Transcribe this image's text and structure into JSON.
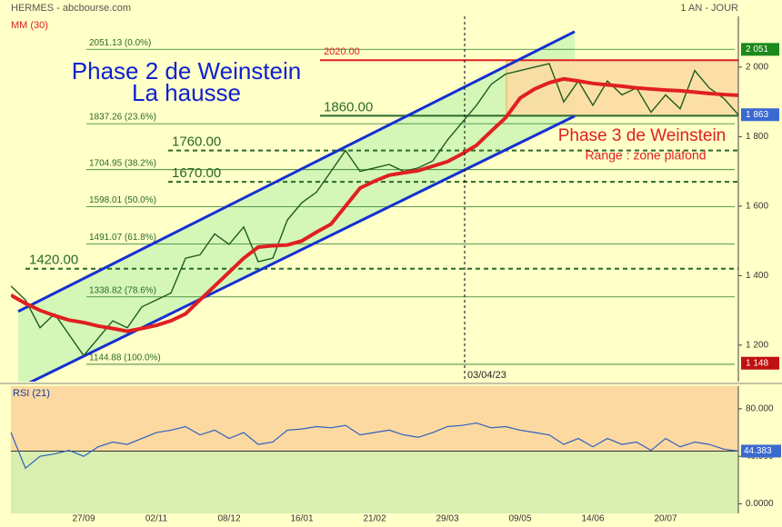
{
  "chart_data": [
    {
      "type": "line",
      "title": "HERMES - abcbourse.com",
      "subtitle": "1 AN - JOUR",
      "series": [
        {
          "color": "#1d5c1d",
          "values": [
            1370,
            1330,
            1250,
            1290,
            1230,
            1170,
            1220,
            1270,
            1250,
            1310,
            1330,
            1350,
            1450,
            1460,
            1520,
            1490,
            1540,
            1440,
            1450,
            1560,
            1610,
            1640,
            1700,
            1760,
            1700,
            1710,
            1720,
            1700,
            1710,
            1730,
            1790,
            1840,
            1890,
            1950,
            1980,
            1990,
            2000,
            2010,
            1900,
            1960,
            1890,
            1960,
            1920,
            1940,
            1870,
            1920,
            1880,
            1990,
            1940,
            1910,
            1863
          ]
        },
        {
          "name": "MM (30)",
          "color": "#e02020",
          "values": [
            1344,
            1320,
            1300,
            1285,
            1272,
            1265,
            1255,
            1248,
            1240,
            1248,
            1257,
            1270,
            1290,
            1330,
            1370,
            1410,
            1450,
            1482,
            1486,
            1488,
            1500,
            1525,
            1548,
            1600,
            1652,
            1672,
            1689,
            1696,
            1702,
            1715,
            1728,
            1750,
            1775,
            1815,
            1854,
            1911,
            1937,
            1955,
            1966,
            1960,
            1953,
            1949,
            1945,
            1940,
            1937,
            1934,
            1932,
            1928,
            1924,
            1921,
            1919
          ]
        }
      ],
      "ylim": [
        1095,
        2146
      ],
      "yticks": [
        {
          "value": 2000,
          "label": "2 000"
        },
        {
          "value": 1800,
          "label": "1 800"
        },
        {
          "value": 1600,
          "label": "1 600"
        },
        {
          "value": 1400,
          "label": "1 400"
        },
        {
          "value": 1200,
          "label": "1 200"
        }
      ],
      "fib_levels": [
        {
          "value": 2051.13,
          "label": "2051.13  (0.0%)"
        },
        {
          "value": 1837.26,
          "label": "1837.26  (23.6%)"
        },
        {
          "value": 1704.95,
          "label": "1704.95  (38.2%)"
        },
        {
          "value": 1598.01,
          "label": "1598.01  (50.0%)"
        },
        {
          "value": 1491.07,
          "label": "1491.07  (61.8%)"
        },
        {
          "value": 1338.82,
          "label": "1338.82  (78.6%)"
        },
        {
          "value": 1144.88,
          "label": "1144.88  (100.0%)"
        }
      ],
      "levels": [
        {
          "value": 2020,
          "label": "2020.00",
          "color": "#e02020",
          "style": "solid"
        },
        {
          "value": 1860,
          "label": "1860.00",
          "color": "#2a6a2a",
          "style": "solid"
        },
        {
          "value": 1760,
          "label": "1760.00",
          "color": "#2a6a2a",
          "style": "dashed"
        },
        {
          "value": 1670,
          "label": "1670.00",
          "color": "#2a6a2a",
          "style": "dashed"
        },
        {
          "value": 1420,
          "label": "1420.00",
          "color": "#2a6a2a",
          "style": "dashed"
        }
      ],
      "badges": [
        {
          "value": 2051,
          "label": "2 051",
          "color": "#1a8a1a"
        },
        {
          "value": 1863,
          "label": "1 863",
          "color": "#3a6ad0"
        },
        {
          "value": 1148,
          "label": "1 148",
          "color": "#c01010"
        }
      ],
      "channel": {
        "x": [
          0.5,
          38.75
        ],
        "upper": [
          1297,
          2102
        ],
        "lower": [
          1076,
          1859
        ],
        "color": "#1530d0"
      },
      "annotations": [
        "Phase 2 de Weinstein",
        "La hausse",
        "Phase 3 de Weinstein",
        "Range : zone plafond"
      ],
      "marker": "03/04/23"
    },
    {
      "type": "line",
      "title": "RSI (21)",
      "categories": [
        null,
        null,
        null,
        null,
        null,
        "27/09",
        null,
        null,
        null,
        null,
        "02/11",
        null,
        null,
        null,
        null,
        "08/12",
        null,
        null,
        null,
        null,
        "16/01",
        null,
        null,
        null,
        null,
        "21/02",
        null,
        null,
        null,
        null,
        "29/03",
        null,
        null,
        null,
        null,
        "09/05",
        null,
        null,
        null,
        null,
        "14/06",
        null,
        null,
        null,
        null,
        "20/07",
        null,
        null,
        null,
        null,
        null
      ],
      "series": [
        {
          "color": "#3060c0",
          "values": [
            60,
            30,
            40,
            42,
            45,
            40,
            48,
            52,
            50,
            55,
            60,
            62,
            65,
            58,
            62,
            55,
            60,
            50,
            52,
            62,
            63,
            65,
            64,
            66,
            58,
            60,
            62,
            58,
            56,
            60,
            65,
            66,
            68,
            64,
            65,
            62,
            60,
            58,
            50,
            55,
            48,
            55,
            50,
            52,
            45,
            55,
            48,
            52,
            50,
            46,
            44.383
          ]
        }
      ],
      "ylim": [
        -8,
        99
      ],
      "yticks": [
        {
          "value": 80,
          "label": "80.000"
        },
        {
          "value": 40,
          "label": "40.000"
        },
        {
          "value": 0,
          "label": "0.0000"
        }
      ],
      "badge": 44.383
    }
  ]
}
